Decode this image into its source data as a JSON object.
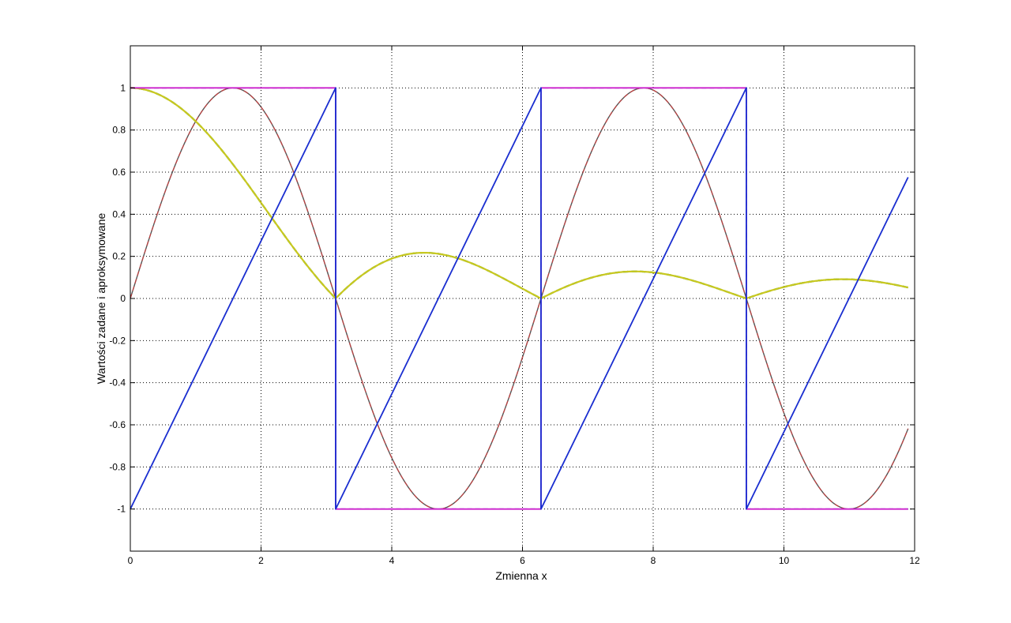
{
  "chart_data": {
    "type": "line",
    "title": "",
    "xlabel": "Zmienna x",
    "ylabel": "Wartości zadane i aproksymowane",
    "xlim": [
      0,
      12
    ],
    "ylim": [
      -1.2,
      1.2
    ],
    "grid": true,
    "x_ticks": [
      "0",
      "2",
      "4",
      "6",
      "8",
      "10",
      "12"
    ],
    "y_ticks": [
      "-1",
      "-0.8",
      "-0.6",
      "-0.4",
      "-0.2",
      "0",
      "0.2",
      "0.4",
      "0.6",
      "0.8",
      "1"
    ],
    "x_tick_values": [
      0,
      2,
      4,
      6,
      8,
      10,
      12
    ],
    "y_tick_values": [
      -1,
      -0.8,
      -0.6,
      -0.4,
      -0.2,
      0,
      0.2,
      0.4,
      0.6,
      0.8,
      1
    ],
    "x_range": [
      0,
      11.9
    ],
    "series": [
      {
        "kind": "sin",
        "color": "#555555",
        "dash": "",
        "width": 1.4
      },
      {
        "kind": "sin",
        "color": "#c04040",
        "dash": "6,4",
        "width": 1.2
      },
      {
        "kind": "sinc",
        "color": "#1a8a1a",
        "dash": "7,4",
        "width": 2.2
      },
      {
        "kind": "sinc",
        "color": "#c8c820",
        "dash": "",
        "width": 2.2
      },
      {
        "kind": "square",
        "color": "#3030d0",
        "dash": "6,4",
        "width": 1.6
      },
      {
        "kind": "square",
        "color": "#30c0e0",
        "dash": "",
        "width": 1.4
      },
      {
        "kind": "square",
        "color": "#cc22cc",
        "dash": "",
        "width": 1.8
      },
      {
        "kind": "sawtooth",
        "color": "#1a2ed0",
        "dash": "",
        "width": 1.8
      }
    ]
  }
}
